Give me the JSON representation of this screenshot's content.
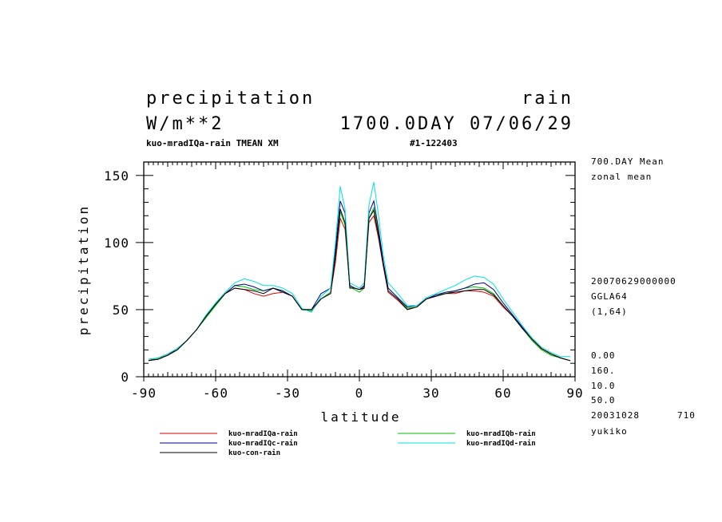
{
  "chart_data": {
    "type": "line",
    "title": "precipitation",
    "title_right": "rain",
    "units": "W/m**2",
    "date_label": "1700.0DAY 07/06/29",
    "experiment_label": "kuo-mradIQa-rain TMEAN XM",
    "run_id": "#1-122403",
    "xlabel": "latitude",
    "ylabel": "precipitation",
    "xlim": [
      -90,
      90
    ],
    "ylim": [
      0,
      160
    ],
    "xticks": [
      -90,
      -60,
      -30,
      0,
      30,
      60,
      90
    ],
    "yticks": [
      0,
      50,
      100,
      150
    ],
    "grid": false,
    "legend_position": "bottom",
    "side_notes": [
      "700.DAY Mean",
      "zonal mean",
      "20070629000000",
      "GGLA64",
      "(1,64)",
      "0.00",
      "160.",
      "10.0",
      "50.0",
      "20031028",
      "710",
      "yukiko"
    ],
    "x": [
      -88,
      -84,
      -80,
      -76,
      -72,
      -68,
      -64,
      -60,
      -56,
      -52,
      -48,
      -44,
      -40,
      -36,
      -32,
      -28,
      -24,
      -20,
      -16,
      -12,
      -10,
      -8,
      -6,
      -4,
      -2,
      0,
      2,
      4,
      6,
      8,
      10,
      12,
      16,
      20,
      24,
      28,
      32,
      36,
      40,
      44,
      48,
      52,
      56,
      60,
      64,
      68,
      72,
      76,
      80,
      84,
      88
    ],
    "series": [
      {
        "name": "kuo-mradIQa-rain",
        "color": "#e00000",
        "values": [
          13,
          14,
          17,
          21,
          27,
          35,
          45,
          54,
          62,
          66,
          65,
          62,
          60,
          62,
          63,
          60,
          50,
          50,
          58,
          63,
          85,
          118,
          110,
          68,
          66,
          65,
          67,
          115,
          120,
          103,
          82,
          63,
          57,
          50,
          52,
          58,
          60,
          62,
          62,
          64,
          64,
          63,
          60,
          52,
          45,
          36,
          28,
          21,
          17,
          14,
          12
        ]
      },
      {
        "name": "kuo-mradIQb-rain",
        "color": "#00c000",
        "values": [
          12,
          14,
          16,
          20,
          27,
          35,
          44,
          53,
          62,
          68,
          67,
          65,
          64,
          66,
          64,
          60,
          50,
          49,
          58,
          63,
          90,
          123,
          113,
          67,
          65,
          63,
          66,
          118,
          126,
          108,
          85,
          66,
          59,
          51,
          52,
          58,
          61,
          62,
          64,
          66,
          67,
          66,
          62,
          53,
          45,
          36,
          27,
          20,
          16,
          14,
          12
        ]
      },
      {
        "name": "kuo-mradIQc-rain",
        "color": "#00008c",
        "values": [
          12,
          13,
          16,
          21,
          27,
          35,
          45,
          54,
          62,
          68,
          69,
          67,
          64,
          66,
          64,
          60,
          50,
          50,
          62,
          66,
          95,
          131,
          122,
          68,
          66,
          65,
          68,
          122,
          131,
          110,
          85,
          66,
          59,
          52,
          53,
          58,
          61,
          63,
          64,
          66,
          69,
          70,
          65,
          55,
          46,
          37,
          28,
          21,
          17,
          14,
          12
        ]
      },
      {
        "name": "kuo-mradIQd-rain",
        "color": "#00e0e0",
        "values": [
          13,
          14,
          17,
          21,
          27,
          35,
          46,
          55,
          63,
          70,
          73,
          71,
          68,
          68,
          66,
          62,
          51,
          48,
          60,
          66,
          100,
          142,
          125,
          70,
          68,
          66,
          70,
          128,
          145,
          120,
          90,
          70,
          62,
          53,
          53,
          59,
          62,
          65,
          68,
          72,
          75,
          74,
          69,
          58,
          48,
          38,
          29,
          22,
          18,
          15,
          15
        ]
      },
      {
        "name": "kuo-con-rain",
        "color": "#000000",
        "values": [
          12,
          13,
          16,
          20,
          27,
          35,
          45,
          54,
          62,
          66,
          65,
          64,
          62,
          66,
          63,
          60,
          50,
          50,
          58,
          62,
          90,
          125,
          115,
          66,
          66,
          65,
          66,
          118,
          124,
          105,
          83,
          64,
          58,
          50,
          52,
          58,
          60,
          62,
          63,
          64,
          65,
          65,
          61,
          53,
          45,
          36,
          28,
          21,
          17,
          14,
          12
        ]
      }
    ]
  }
}
